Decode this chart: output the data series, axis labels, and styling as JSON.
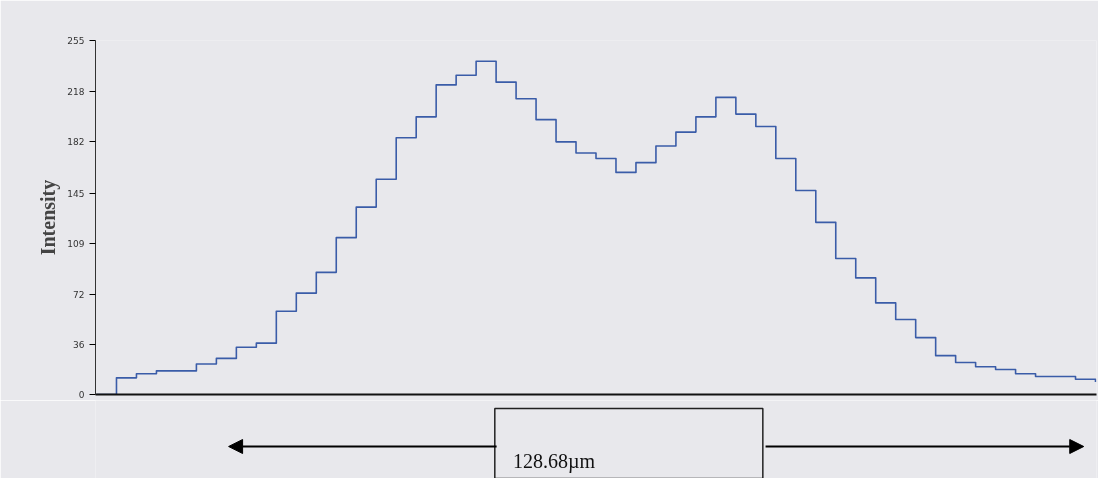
{
  "chart_data": {
    "type": "step",
    "ylabel": "Intensity",
    "annotations": [
      "128.68µm"
    ],
    "categories": [
      null,
      null,
      null,
      null,
      null,
      null,
      null,
      null,
      null,
      null,
      null,
      null,
      null,
      null,
      null,
      null,
      null,
      null,
      null,
      null,
      null,
      null,
      null,
      null,
      null,
      null,
      null,
      null,
      null,
      null,
      null,
      null,
      null,
      null,
      null,
      null,
      null,
      null,
      null,
      null,
      null,
      null,
      null,
      null,
      null,
      null,
      null,
      null,
      null,
      null,
      null
    ],
    "series": [
      {
        "color": "#3a5ca8",
        "values": [
          0,
          12,
          15,
          17,
          17,
          22,
          26,
          34,
          37,
          60,
          73,
          88,
          113,
          135,
          155,
          185,
          200,
          223,
          230,
          240,
          225,
          213,
          198,
          182,
          174,
          170,
          160,
          167,
          179,
          189,
          200,
          214,
          202,
          193,
          170,
          147,
          124,
          98,
          84,
          66,
          54,
          41,
          28,
          23,
          20,
          18,
          15,
          13,
          13,
          11,
          9
        ]
      }
    ],
    "ylim": [
      0,
      255
    ],
    "yticks": [
      0,
      36,
      72,
      109,
      145,
      182,
      218,
      255
    ],
    "tick_labels": "y",
    "grid": false
  }
}
